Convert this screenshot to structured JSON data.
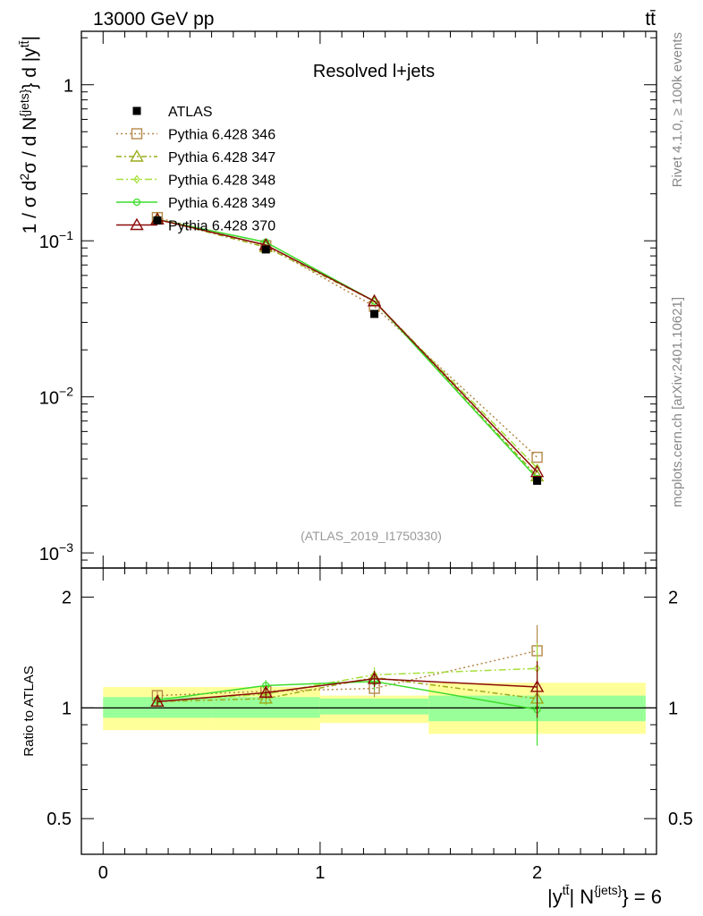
{
  "header": {
    "left": "13000 GeV pp",
    "right": "tt̄"
  },
  "side_labels": {
    "rivet": "Rivet 4.1.0, ≥ 100k events",
    "mcplots": "mcplots.cern.ch [arXiv:2401.10621]"
  },
  "chart_data": {
    "type": "line",
    "title": "Resolved l+jets",
    "watermark": "(ATLAS_2019_I1750330)",
    "ylabel": "1 / σ d²σ / d N{jets} d |y^{tt̄}|",
    "ylabel_parts": {
      "prefix": "1 / σ d",
      "sup1": "2",
      "mid": "σ / d N",
      "sup2": "{jets}",
      "mid2": "} d |y",
      "sup3": "tt̄",
      "suffix": "|"
    },
    "ratio_ylabel": "Ratio to ATLAS",
    "xlabel_parts": {
      "p1": "|y",
      "sup1": "tt̄",
      "p2": "| N",
      "sup2": "{jets}",
      "p3": "} = 6"
    },
    "xlim": [
      -0.1,
      2.55
    ],
    "ylim": [
      0.0008,
      2.2
    ],
    "yscale": "log",
    "ratio_ylim": [
      0.4,
      2.4
    ],
    "x_ticks": [
      {
        "value": 0,
        "label": "0"
      },
      {
        "value": 1,
        "label": "1"
      },
      {
        "value": 2,
        "label": "2"
      }
    ],
    "y_ticks": [
      {
        "value": 1,
        "label": "1",
        "exp": ""
      },
      {
        "value": 0.1,
        "label": "10",
        "exp": "−1"
      },
      {
        "value": 0.01,
        "label": "10",
        "exp": "−2"
      },
      {
        "value": 0.001,
        "label": "10",
        "exp": "−3"
      }
    ],
    "ratio_ticks": [
      {
        "value": 0.5,
        "label": "0.5"
      },
      {
        "value": 1,
        "label": "1"
      },
      {
        "value": 2,
        "label": "2"
      }
    ],
    "bins": [
      [
        0,
        0.5
      ],
      [
        0.5,
        1.0
      ],
      [
        1.0,
        1.5
      ],
      [
        1.5,
        2.5
      ]
    ],
    "x": [
      0.25,
      0.75,
      1.25,
      2.0
    ],
    "data": {
      "name": "ATLAS",
      "values": [
        0.135,
        0.088,
        0.034,
        0.0029
      ],
      "band_inner": [
        [
          0.94,
          1.07
        ],
        [
          0.94,
          1.07
        ],
        [
          0.96,
          1.06
        ],
        [
          0.92,
          1.08
        ]
      ],
      "band_outer": [
        [
          0.87,
          1.14
        ],
        [
          0.87,
          1.14
        ],
        [
          0.91,
          1.08
        ],
        [
          0.85,
          1.17
        ]
      ]
    },
    "series": [
      {
        "name": "Pythia 6.428 346",
        "color": "#b5884a",
        "dash": "2,3",
        "marker": "square",
        "values": [
          0.141,
          0.093,
          0.038,
          0.0041
        ],
        "ratio": [
          1.08,
          1.11,
          1.13,
          1.43
        ],
        "ratio_err": [
          0.03,
          0.04,
          0.06,
          0.25
        ]
      },
      {
        "name": "Pythia 6.428 347",
        "color": "#9aab1c",
        "dash": "6,3,2,3",
        "marker": "triangle",
        "values": [
          0.138,
          0.091,
          0.041,
          0.0031
        ],
        "ratio": [
          1.04,
          1.06,
          1.21,
          1.06
        ],
        "ratio_err": [
          0.03,
          0.04,
          0.06,
          0.2
        ]
      },
      {
        "name": "Pythia 6.428 348",
        "color": "#a6e03a",
        "dash": "8,3,2,3",
        "marker": "diamond",
        "values": [
          0.137,
          0.094,
          0.041,
          0.0035
        ],
        "ratio": [
          1.04,
          1.09,
          1.23,
          1.28
        ],
        "ratio_err": [
          0.03,
          0.04,
          0.06,
          0.22
        ]
      },
      {
        "name": "Pythia 6.428 349",
        "color": "#3ddd2b",
        "dash": "",
        "marker": "circle",
        "values": [
          0.137,
          0.098,
          0.041,
          0.003
        ],
        "ratio": [
          1.05,
          1.15,
          1.18,
          0.99
        ],
        "ratio_err": [
          0.03,
          0.04,
          0.06,
          0.2
        ]
      },
      {
        "name": "Pythia 6.428 370",
        "color": "#8b0a0a",
        "dash": "",
        "marker": "triangle",
        "values": [
          0.137,
          0.094,
          0.041,
          0.0033
        ],
        "ratio": [
          1.04,
          1.1,
          1.2,
          1.14
        ],
        "ratio_err": [
          0.03,
          0.04,
          0.06,
          0.2
        ]
      }
    ]
  }
}
